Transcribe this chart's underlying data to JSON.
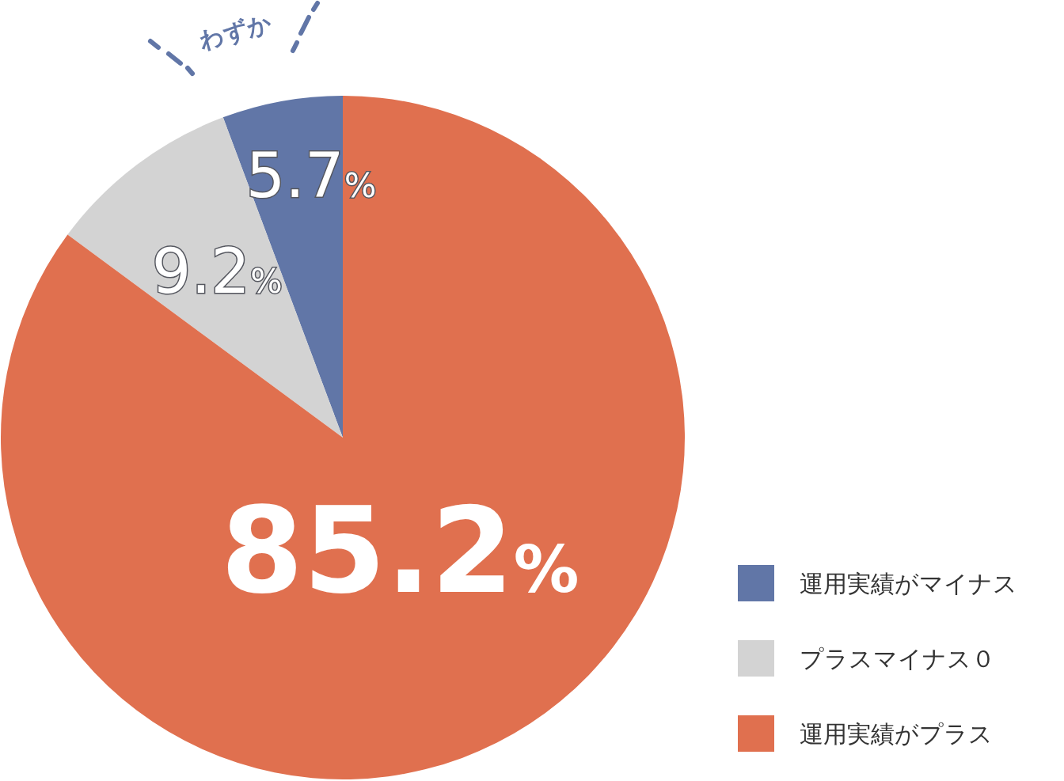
{
  "chart_data": {
    "type": "pie",
    "categories": [
      "運用実績がマイナス",
      "プラスマイナス０",
      "運用実績がプラス"
    ],
    "values": [
      5.7,
      9.2,
      85.2
    ],
    "colors": [
      "#6176a7",
      "#d3d3d3",
      "#e0704f"
    ],
    "value_labels": [
      "5.7%",
      "9.2%",
      "85.2%"
    ],
    "annotations": [
      "わずか"
    ],
    "legend": "bottom right"
  }
}
